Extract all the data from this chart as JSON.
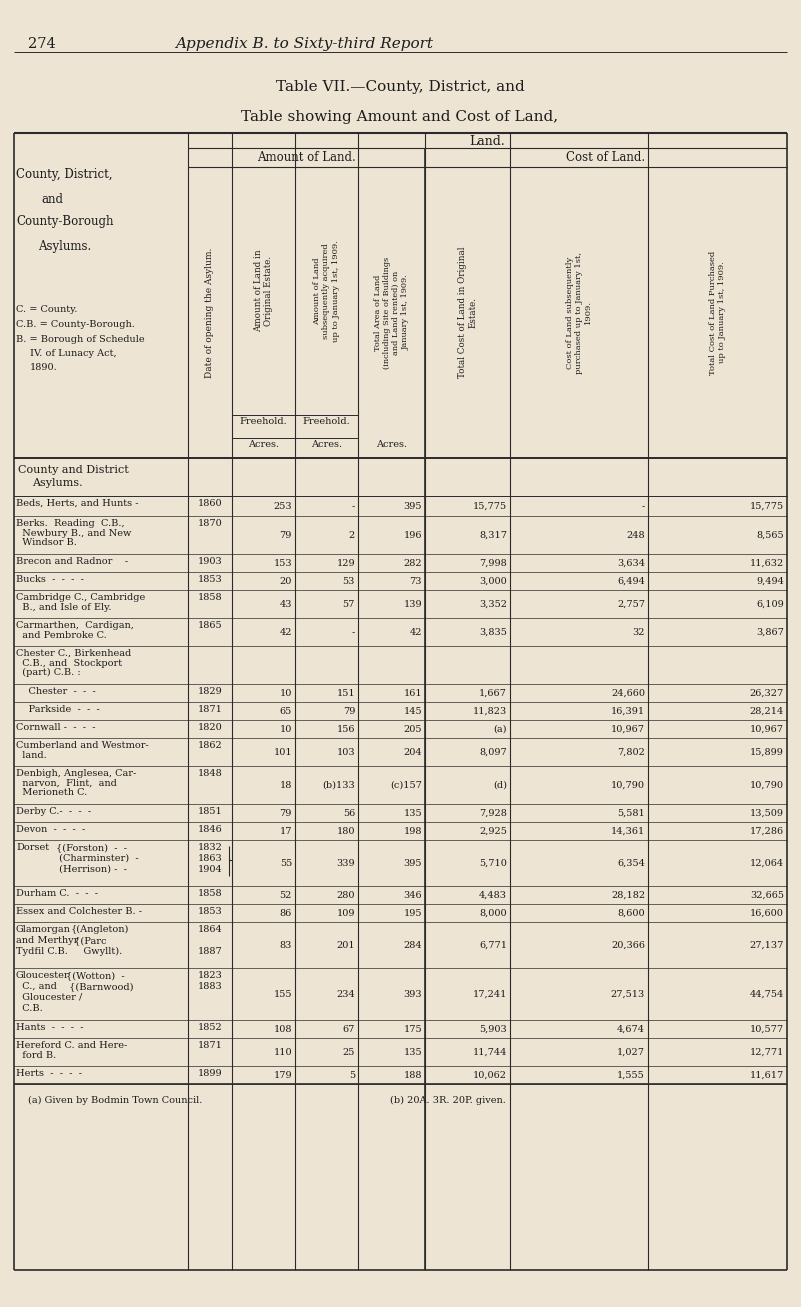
{
  "bg_color": "#ede4d3",
  "text_color": "#1c1c1c",
  "page_num": "274",
  "page_header": "Appendix B. to Sixty-third Report",
  "title1": "Table VII.—County, District, and",
  "title2": "Table showing Amount and Cost of Land,",
  "rows": [
    {
      "name": [
        "Beds, Herts, and Hunts -"
      ],
      "year": [
        "1860"
      ],
      "c1": "253",
      "c2": "-",
      "c3": "395",
      "c4": "15,775",
      "c5": "-",
      "c6": "15,775"
    },
    {
      "name": [
        "Berks.  Reading  C.B.,",
        "  Newbury B., and New",
        "  Windsor B."
      ],
      "year": [
        "1870"
      ],
      "c1": "79",
      "c2": "2",
      "c3": "196",
      "c4": "8,317",
      "c5": "248",
      "c6": "8,565"
    },
    {
      "name": [
        "Brecon and Radnor    -"
      ],
      "year": [
        "1903"
      ],
      "c1": "153",
      "c2": "129",
      "c3": "282",
      "c4": "7,998",
      "c5": "3,634",
      "c6": "11,632"
    },
    {
      "name": [
        "Bucks  -  -  -  -"
      ],
      "year": [
        "1853"
      ],
      "c1": "20",
      "c2": "53",
      "c3": "73",
      "c4": "3,000",
      "c5": "6,494",
      "c6": "9,494"
    },
    {
      "name": [
        "Cambridge C., Cambridge",
        "  B., and Isle of Ely."
      ],
      "year": [
        "1858"
      ],
      "c1": "43",
      "c2": "57",
      "c3": "139",
      "c4": "3,352",
      "c5": "2,757",
      "c6": "6,109"
    },
    {
      "name": [
        "Carmarthen,  Cardigan,",
        "  and Pembroke C."
      ],
      "year": [
        "1865"
      ],
      "c1": "42",
      "c2": "-",
      "c3": "42",
      "c4": "3,835",
      "c5": "32",
      "c6": "3,867"
    },
    {
      "name": [
        "Chester C., Birkenhead",
        "  C.B., and  Stockport",
        "  (part) C.B. :"
      ],
      "year": [],
      "c1": "",
      "c2": "",
      "c3": "",
      "c4": "",
      "c5": "",
      "c6": ""
    },
    {
      "name": [
        "    Chester  -  -  -"
      ],
      "year": [
        "1829"
      ],
      "c1": "10",
      "c2": "151",
      "c3": "161",
      "c4": "1,667",
      "c5": "24,660",
      "c6": "26,327"
    },
    {
      "name": [
        "    Parkside  -  -  -"
      ],
      "year": [
        "1871"
      ],
      "c1": "65",
      "c2": "79",
      "c3": "145",
      "c4": "11,823",
      "c5": "16,391",
      "c6": "28,214"
    },
    {
      "name": [
        "Cornwall -  -  -  -"
      ],
      "year": [
        "1820"
      ],
      "c1": "10",
      "c2": "156",
      "c3": "205",
      "c4": "(a)",
      "c5": "10,967",
      "c6": "10,967"
    },
    {
      "name": [
        "Cumberland and Westmor-",
        "  land."
      ],
      "year": [
        "1862"
      ],
      "c1": "101",
      "c2": "103",
      "c3": "204",
      "c4": "8,097",
      "c5": "7,802",
      "c6": "15,899"
    },
    {
      "name": [
        "Denbigh, Anglesea, Car-",
        "  narvon,  Flint,  and",
        "  Merioneth C."
      ],
      "year": [
        "1848"
      ],
      "c1": "18",
      "c2": "(b)133",
      "c3": "(c)157",
      "c4": "(d)",
      "c5": "10,790",
      "c6": "10,790"
    },
    {
      "name": [
        "Derby C.-  -  -  -"
      ],
      "year": [
        "1851"
      ],
      "c1": "79",
      "c2": "56",
      "c3": "135",
      "c4": "7,928",
      "c5": "5,581",
      "c6": "13,509"
    },
    {
      "name": [
        "Devon  -  -  -  -"
      ],
      "year": [
        "1846"
      ],
      "c1": "17",
      "c2": "180",
      "c3": "198",
      "c4": "2,925",
      "c5": "14,361",
      "c6": "17,286"
    },
    {
      "name": [
        "Dorset",
        "       (Charminster)  -",
        "       (Herrison) -  -"
      ],
      "year": [
        "1832",
        "1863",
        "1904"
      ],
      "c1": "55",
      "c2": "339",
      "c3": "395",
      "c4": "5,710",
      "c5": "6,354",
      "c6": "12,064",
      "special": "dorset"
    },
    {
      "name": [
        "Durham C.  -  -  -"
      ],
      "year": [
        "1858"
      ],
      "c1": "52",
      "c2": "280",
      "c3": "346",
      "c4": "4,483",
      "c5": "28,182",
      "c6": "32,665"
    },
    {
      "name": [
        "Essex and Colchester B. -"
      ],
      "year": [
        "1853"
      ],
      "c1": "86",
      "c2": "109",
      "c3": "195",
      "c4": "8,000",
      "c5": "8,600",
      "c6": "16,600"
    },
    {
      "name": [
        "Glamorgan",
        "and Merthyr",
        "Tydfil C.B."
      ],
      "year": [
        "1864",
        "",
        "1887"
      ],
      "c1": "83",
      "c2": "201",
      "c3": "284",
      "c4": "6,771",
      "c5": "20,366",
      "c6": "27,137",
      "special": "glamorgan"
    },
    {
      "name": [
        "Gloucester",
        "  C., and",
        "  Gloucester /",
        "  C.B."
      ],
      "year": [
        "1823",
        "1883"
      ],
      "c1": "155",
      "c2": "234",
      "c3": "393",
      "c4": "17,241",
      "c5": "27,513",
      "c6": "44,754",
      "special": "gloucester"
    },
    {
      "name": [
        "Hants  -  -  -  -"
      ],
      "year": [
        "1852"
      ],
      "c1": "108",
      "c2": "67",
      "c3": "175",
      "c4": "5,903",
      "c5": "4,674",
      "c6": "10,577"
    },
    {
      "name": [
        "Hereford C. and Here-",
        "  ford B."
      ],
      "year": [
        "1871"
      ],
      "c1": "110",
      "c2": "25",
      "c3": "135",
      "c4": "11,744",
      "c5": "1,027",
      "c6": "12,771"
    },
    {
      "name": [
        "Herts  -  -  -  -"
      ],
      "year": [
        "1899"
      ],
      "c1": "179",
      "c2": "5",
      "c3": "188",
      "c4": "10,062",
      "c5": "1,555",
      "c6": "11,617"
    }
  ]
}
